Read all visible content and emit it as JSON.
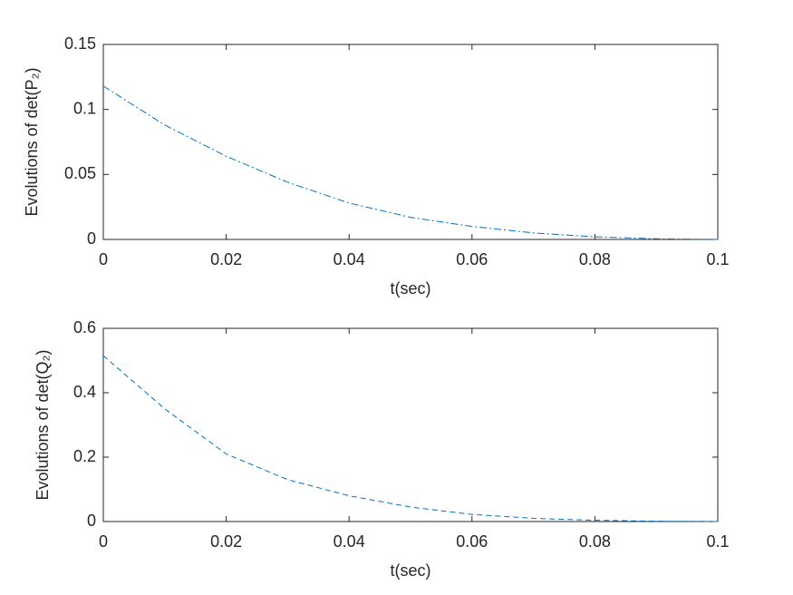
{
  "chart_data": [
    {
      "type": "line",
      "ylabel": "Evolutions of det(P₂)",
      "xlabel": "t(sec)",
      "x": [
        0,
        0.01,
        0.02,
        0.03,
        0.04,
        0.05,
        0.06,
        0.07,
        0.08,
        0.09,
        0.1
      ],
      "values": [
        0.118,
        0.088,
        0.064,
        0.044,
        0.028,
        0.017,
        0.01,
        0.005,
        0.002,
        0.0005,
        0
      ],
      "color": "#0072bd",
      "line_style": "dashdot",
      "xlim": [
        0,
        0.1
      ],
      "xticks": [
        0,
        0.02,
        0.04,
        0.06,
        0.08,
        0.1
      ],
      "ylim": [
        0,
        0.15
      ],
      "yticks": [
        0,
        0.05,
        0.1,
        0.15
      ],
      "grid": false
    },
    {
      "type": "line",
      "ylabel": "Evolutions of det(Q₂)",
      "xlabel": "t(sec)",
      "x": [
        0,
        0.01,
        0.02,
        0.03,
        0.04,
        0.05,
        0.06,
        0.07,
        0.08,
        0.09,
        0.1
      ],
      "values": [
        0.515,
        0.35,
        0.21,
        0.13,
        0.08,
        0.045,
        0.022,
        0.01,
        0.004,
        0.001,
        0
      ],
      "color": "#0072bd",
      "line_style": "dashed",
      "xlim": [
        0,
        0.1
      ],
      "xticks": [
        0,
        0.02,
        0.04,
        0.06,
        0.08,
        0.1
      ],
      "ylim": [
        0,
        0.6
      ],
      "yticks": [
        0,
        0.2,
        0.4,
        0.6
      ],
      "grid": false
    }
  ]
}
